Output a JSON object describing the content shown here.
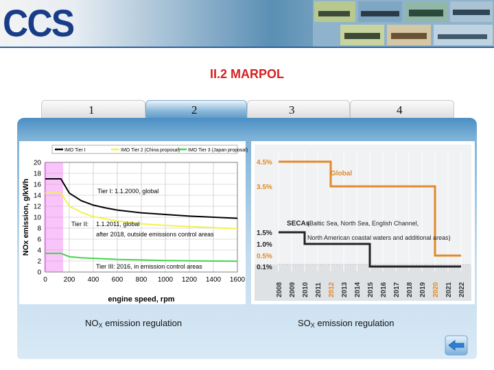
{
  "header": {
    "logo_text": "CCS"
  },
  "title": "II.2 MARPOL",
  "tabs": [
    {
      "label": "1"
    },
    {
      "label": "2"
    },
    {
      "label": "3"
    },
    {
      "label": "4"
    }
  ],
  "captions": {
    "left_prefix": "NO",
    "left_sub": "X",
    "left_suffix": " emission regulation",
    "right_prefix": "SO",
    "right_sub": "X",
    "right_suffix": " emission regulation"
  },
  "colors": {
    "accent": "#d81e1e",
    "panel": "#4a8fc4",
    "nox_tier1": "#000000",
    "nox_tier2": "#f2f24a",
    "nox_tier3": "#44d44a",
    "sox_global": "#e0892a",
    "sox_eca": "#222222"
  },
  "chart_data": [
    {
      "type": "line",
      "title": "",
      "legend": [
        "IMO Tier I",
        "IMO Tier 2 (China proposal)",
        "IMO Tier 3 (Japan proposal)"
      ],
      "xlabel": "engine speed, rpm",
      "ylabel": "NOx emission, g/kWh",
      "x_ticks": [
        0,
        200,
        400,
        600,
        800,
        1000,
        1200,
        1400,
        1600
      ],
      "y_ticks": [
        0,
        2,
        4,
        6,
        8,
        10,
        12,
        14,
        16,
        18,
        20
      ],
      "xlim": [
        0,
        1600
      ],
      "ylim": [
        0,
        20
      ],
      "series": [
        {
          "name": "IMO Tier I",
          "x": [
            0,
            130,
            200,
            300,
            400,
            500,
            600,
            800,
            1000,
            1200,
            1400,
            1600
          ],
          "y": [
            17,
            17,
            14.4,
            13.0,
            12.2,
            11.7,
            11.3,
            10.8,
            10.5,
            10.2,
            10.0,
            9.8
          ]
        },
        {
          "name": "IMO Tier 2 (China proposal)",
          "x": [
            0,
            130,
            200,
            300,
            400,
            500,
            600,
            800,
            1000,
            1200,
            1400,
            1600
          ],
          "y": [
            14.4,
            14.4,
            12.0,
            10.9,
            10.1,
            9.7,
            9.3,
            8.8,
            8.5,
            8.3,
            8.1,
            7.9
          ]
        },
        {
          "name": "IMO Tier 3 (Japan proposal)",
          "x": [
            0,
            130,
            200,
            300,
            400,
            500,
            600,
            800,
            1000,
            1200,
            1400,
            1600
          ],
          "y": [
            3.4,
            3.4,
            2.8,
            2.6,
            2.5,
            2.4,
            2.3,
            2.2,
            2.1,
            2.05,
            2.0,
            1.97
          ]
        }
      ],
      "annotations": [
        "Tier I: 1.1.2000, global",
        "Tier II:",
        "1.1.2011, global",
        "after 2018, outside emissions control areas",
        "Tier III: 2016, in emission control areas"
      ]
    },
    {
      "type": "line",
      "title": "",
      "x_ticks": [
        "2008",
        "2009",
        "2010",
        "2011",
        "2012",
        "2013",
        "2014",
        "2015",
        "2016",
        "2017",
        "2018",
        "2019",
        "2020",
        "2021",
        "2022"
      ],
      "highlight_ticks": [
        "2012",
        "2020"
      ],
      "y_ticks": [
        "4.5%",
        "3.5%",
        "1.5%",
        "1.0%",
        "0.5%",
        "0.1%"
      ],
      "series": [
        {
          "name": "Global",
          "x": [
            "2008",
            "2012",
            "2012",
            "2020",
            "2020",
            "2022"
          ],
          "y": [
            4.5,
            4.5,
            3.5,
            3.5,
            0.5,
            0.5
          ]
        },
        {
          "name": "SECAs",
          "x": [
            "2008",
            "2010",
            "2010",
            "2015",
            "2015",
            "2022"
          ],
          "y": [
            1.5,
            1.5,
            1.0,
            1.0,
            0.1,
            0.1
          ]
        }
      ],
      "annotations": [
        "Global",
        "SECAs",
        "(Baltic Sea, North Sea, English Channel,",
        "North American coastal waters and additional areas)"
      ]
    }
  ]
}
